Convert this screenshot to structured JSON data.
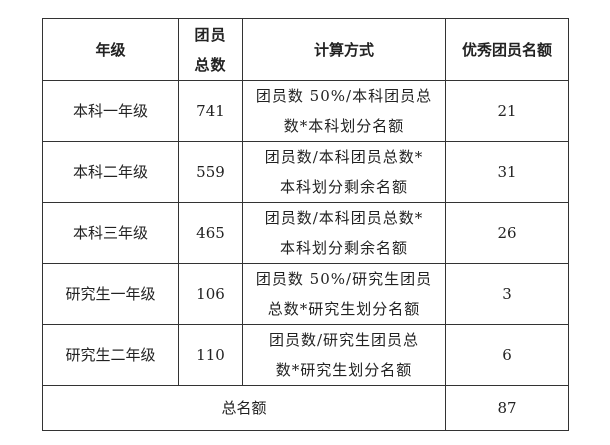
{
  "headers": {
    "grade": "年级",
    "members_line1": "团员",
    "members_line2": "总数",
    "method": "计算方式",
    "quota": "优秀团员名额"
  },
  "rows": [
    {
      "grade": "本科一年级",
      "members": "741",
      "method_line1": "团员数 50%/本科团员总",
      "method_line2": "数*本科划分名额",
      "quota": "21"
    },
    {
      "grade": "本科二年级",
      "members": "559",
      "method_line1": "团员数/本科团员总数*",
      "method_line2": "本科划分剩余名额",
      "quota": "31"
    },
    {
      "grade": "本科三年级",
      "members": "465",
      "method_line1": "团员数/本科团员总数*",
      "method_line2": "本科划分剩余名额",
      "quota": "26"
    },
    {
      "grade": "研究生一年级",
      "members": "106",
      "method_line1": "团员数 50%/研究生团员",
      "method_line2": "总数*研究生划分名额",
      "quota": "3"
    },
    {
      "grade": "研究生二年级",
      "members": "110",
      "method_line1": "团员数/研究生团员总",
      "method_line2": "数*研究生划分名额",
      "quota": "6"
    }
  ],
  "total": {
    "label": "总名额",
    "value": "87"
  }
}
